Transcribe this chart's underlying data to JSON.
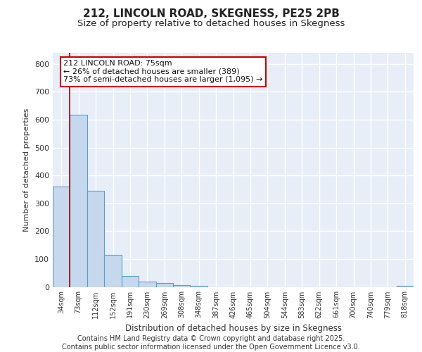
{
  "title": "212, LINCOLN ROAD, SKEGNESS, PE25 2PB",
  "subtitle": "Size of property relative to detached houses in Skegness",
  "xlabel": "Distribution of detached houses by size in Skegness",
  "ylabel": "Number of detached properties",
  "categories": [
    "34sqm",
    "73sqm",
    "112sqm",
    "152sqm",
    "191sqm",
    "230sqm",
    "269sqm",
    "308sqm",
    "348sqm",
    "387sqm",
    "426sqm",
    "465sqm",
    "504sqm",
    "544sqm",
    "583sqm",
    "622sqm",
    "661sqm",
    "700sqm",
    "740sqm",
    "779sqm",
    "818sqm"
  ],
  "values": [
    360,
    618,
    345,
    115,
    38,
    18,
    13,
    7,
    5,
    0,
    0,
    0,
    0,
    0,
    0,
    0,
    0,
    0,
    0,
    0,
    5
  ],
  "bar_color": "#c5d8ed",
  "bar_edge_color": "#5b9ec9",
  "vline_x": 0.5,
  "vline_color": "#aa0000",
  "annotation_text": "212 LINCOLN ROAD: 75sqm\n← 26% of detached houses are smaller (389)\n73% of semi-detached houses are larger (1,095) →",
  "annotation_box_color": "#ffffff",
  "annotation_box_edge": "#cc0000",
  "ylim": [
    0,
    840
  ],
  "yticks": [
    0,
    100,
    200,
    300,
    400,
    500,
    600,
    700,
    800
  ],
  "background_color": "#e8eef8",
  "grid_color": "#ffffff",
  "footer_line1": "Contains HM Land Registry data © Crown copyright and database right 2025.",
  "footer_line2": "Contains public sector information licensed under the Open Government Licence v3.0.",
  "title_fontsize": 11,
  "subtitle_fontsize": 9.5,
  "footer_fontsize": 7,
  "annot_fontsize": 8,
  "ylabel_fontsize": 8,
  "xlabel_fontsize": 8.5,
  "ytick_fontsize": 8,
  "xtick_fontsize": 7
}
